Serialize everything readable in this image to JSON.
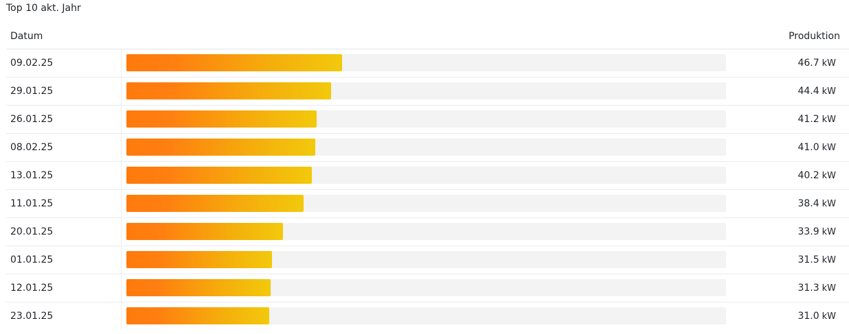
{
  "title": "Top 10 akt. Jahr",
  "header": {
    "date_label": "Datum",
    "production_label": "Produktion"
  },
  "unit": "kW",
  "colors": {
    "bar_start": "#ff7a0c",
    "bar_end": "#f2c90c",
    "track": "#f2f3f2"
  },
  "chart_data": {
    "type": "bar",
    "orientation": "horizontal",
    "title": "Top 10 akt. Jahr",
    "xlabel": "Produktion",
    "ylabel": "Datum",
    "unit": "kW",
    "xlim": [
      0,
      130
    ],
    "categories": [
      "09.02.25",
      "29.01.25",
      "26.01.25",
      "08.02.25",
      "13.01.25",
      "11.01.25",
      "20.01.25",
      "01.01.25",
      "12.01.25",
      "23.01.25"
    ],
    "values": [
      46.7,
      44.4,
      41.2,
      41.0,
      40.2,
      38.4,
      33.9,
      31.5,
      31.3,
      31.0
    ],
    "value_labels": [
      "46.7",
      "44.4",
      "41.2",
      "41.0",
      "40.2",
      "38.4",
      "33.9",
      "31.5",
      "31.3",
      "31.0"
    ]
  }
}
